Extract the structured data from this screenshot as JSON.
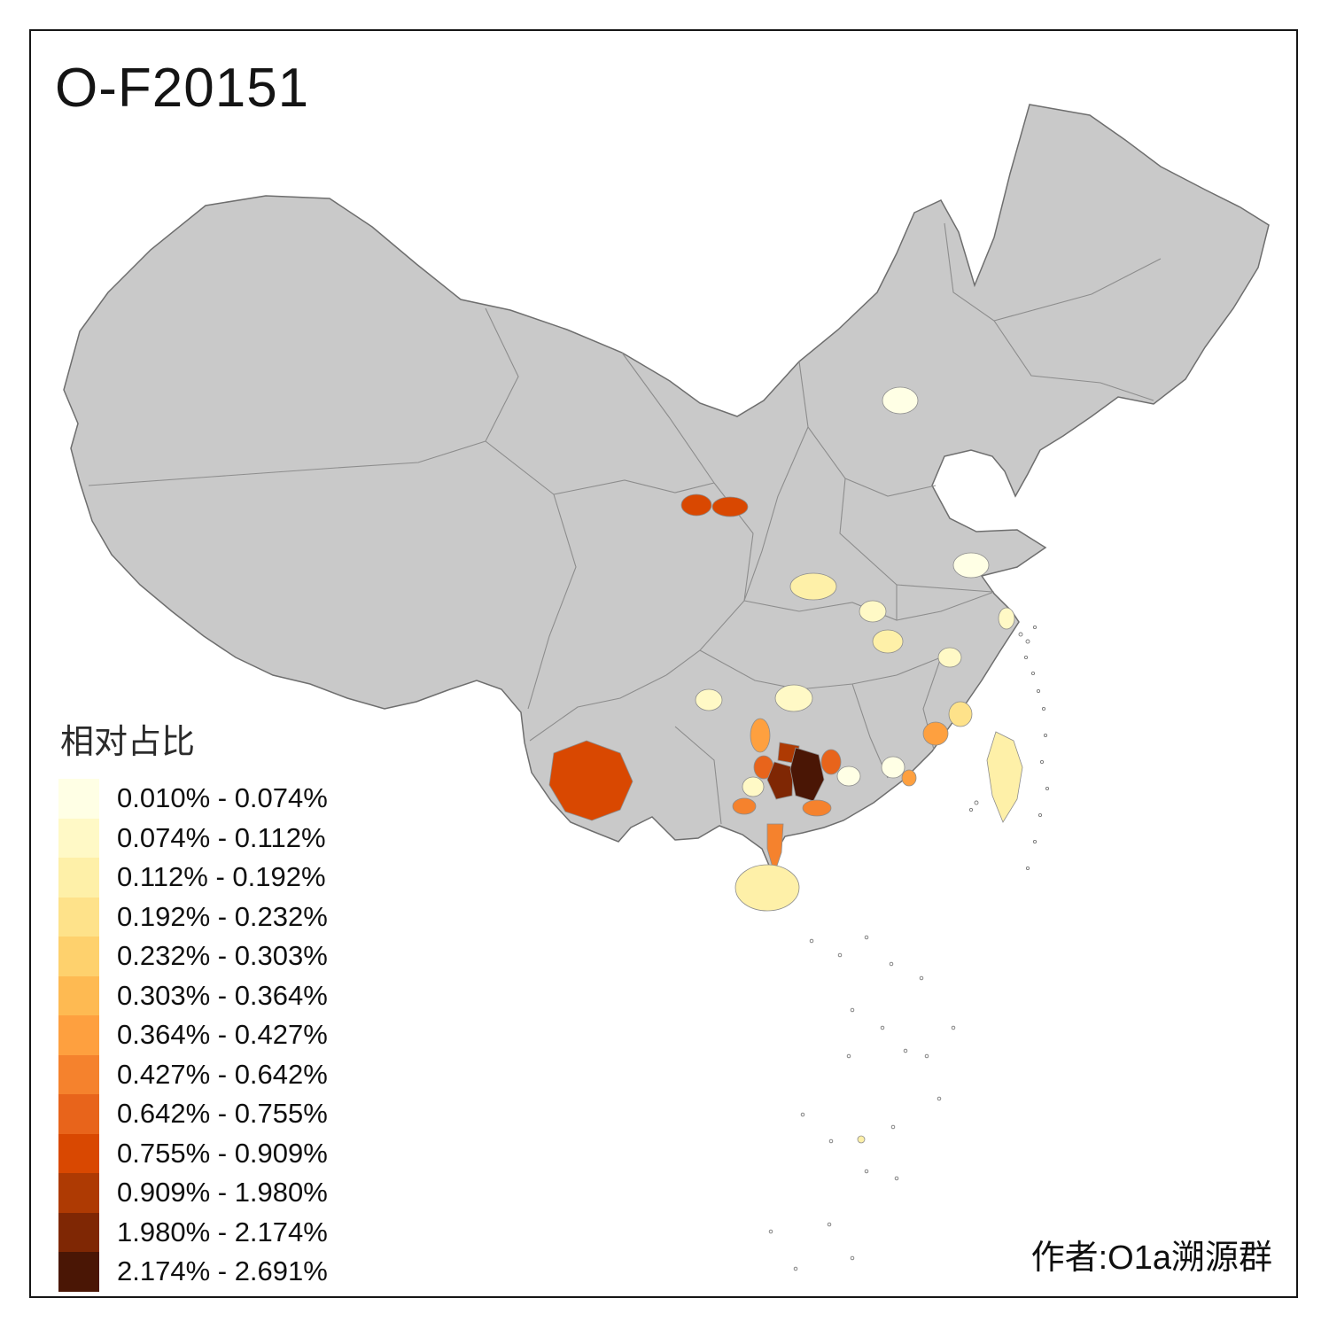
{
  "title": "O-F20151",
  "author_credit": "作者:O1a溯源群",
  "legend": {
    "title": "相对占比",
    "classes": [
      {
        "label": "0.010% - 0.074%",
        "color": "#FFFFE5"
      },
      {
        "label": "0.074% - 0.112%",
        "color": "#FFF9C6"
      },
      {
        "label": "0.112% - 0.192%",
        "color": "#FEF0A8"
      },
      {
        "label": "0.192% - 0.232%",
        "color": "#FEE28A"
      },
      {
        "label": "0.232% - 0.303%",
        "color": "#FED16D"
      },
      {
        "label": "0.303% - 0.364%",
        "color": "#FEBA52"
      },
      {
        "label": "0.364% - 0.427%",
        "color": "#FEA03F"
      },
      {
        "label": "0.427% - 0.642%",
        "color": "#F5822D"
      },
      {
        "label": "0.642% - 0.755%",
        "color": "#E8641B"
      },
      {
        "label": "0.755% - 0.909%",
        "color": "#D94801"
      },
      {
        "label": "0.909% - 1.980%",
        "color": "#AE3A03"
      },
      {
        "label": "1.980% - 2.174%",
        "color": "#7F2704"
      },
      {
        "label": "2.174% - 2.691%",
        "color": "#4A1605"
      }
    ]
  },
  "map": {
    "base_fill": "#C9C9C9",
    "border_color": "#6E6E6E",
    "inner_border_color": "#8D8D8D",
    "background": "#FFFFFF",
    "regions": [
      {
        "id": "beijing",
        "class_index": 0
      },
      {
        "id": "jiangsu",
        "class_index": 0
      },
      {
        "id": "henan",
        "class_index": 2
      },
      {
        "id": "hubei-west",
        "class_index": 1
      },
      {
        "id": "hubei-east",
        "class_index": 2
      },
      {
        "id": "shanghai",
        "class_index": 1
      },
      {
        "id": "anhui-south",
        "class_index": 1
      },
      {
        "id": "zhejiang-coast",
        "class_index": 3
      },
      {
        "id": "guizhou",
        "class_index": 1
      },
      {
        "id": "hunan",
        "class_index": 1
      },
      {
        "id": "jiangxi-south",
        "class_index": 0
      },
      {
        "id": "fujian-coast",
        "class_index": 6
      },
      {
        "id": "chaoshan",
        "class_index": 6
      },
      {
        "id": "gansu-west",
        "class_index": 9
      },
      {
        "id": "gansu-east",
        "class_index": 9
      },
      {
        "id": "yunnan-west",
        "class_index": 9
      },
      {
        "id": "guangxi-north-strip",
        "class_index": 6
      },
      {
        "id": "guangxi-cream",
        "class_index": 1
      },
      {
        "id": "guangxi-southwest",
        "class_index": 7
      },
      {
        "id": "guangxi-red-west",
        "class_index": 8
      },
      {
        "id": "guangxi-dark-north",
        "class_index": 10
      },
      {
        "id": "guangxi-darkest",
        "class_index": 12
      },
      {
        "id": "guangxi-dark-west",
        "class_index": 11
      },
      {
        "id": "guangxi-east-red",
        "class_index": 8
      },
      {
        "id": "guangdong-north-pale",
        "class_index": 0
      },
      {
        "id": "guangdong-west",
        "class_index": 7
      },
      {
        "id": "leizhou",
        "class_index": 7
      },
      {
        "id": "hainan",
        "class_index": 2
      },
      {
        "id": "taiwan",
        "class_index": 2
      },
      {
        "id": "south-sea-islet",
        "class_index": 2
      }
    ]
  }
}
